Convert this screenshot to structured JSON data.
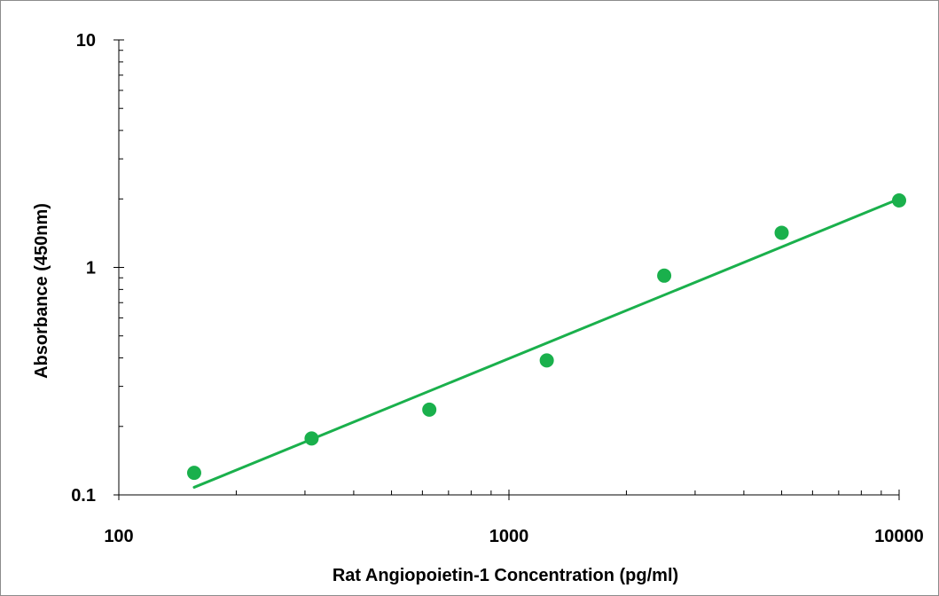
{
  "chart_data": {
    "type": "scatter",
    "xlabel": "Rat Angiopoietin-1 Concentration (pg/ml)",
    "ylabel": "Absorbance (450nm)",
    "x_scale": "log",
    "y_scale": "log",
    "xlim": [
      100,
      10000
    ],
    "ylim": [
      0.1,
      10
    ],
    "x_tick_labels": [
      "100",
      "1000",
      "10000"
    ],
    "y_tick_labels": [
      "10",
      "1",
      "0.1"
    ],
    "grid": false,
    "marker_color": "#1ab04c",
    "line_color": "#1ab04c",
    "series": [
      {
        "points": [
          {
            "x": 156,
            "y": 0.125
          },
          {
            "x": 312,
            "y": 0.177
          },
          {
            "x": 625,
            "y": 0.237
          },
          {
            "x": 1250,
            "y": 0.39
          },
          {
            "x": 2500,
            "y": 0.92
          },
          {
            "x": 5000,
            "y": 1.42
          },
          {
            "x": 10000,
            "y": 1.97
          }
        ]
      }
    ],
    "trendline": {
      "type": "power",
      "points": [
        {
          "x": 156,
          "y": 0.108
        },
        {
          "x": 10000,
          "y": 2.0
        }
      ]
    }
  }
}
